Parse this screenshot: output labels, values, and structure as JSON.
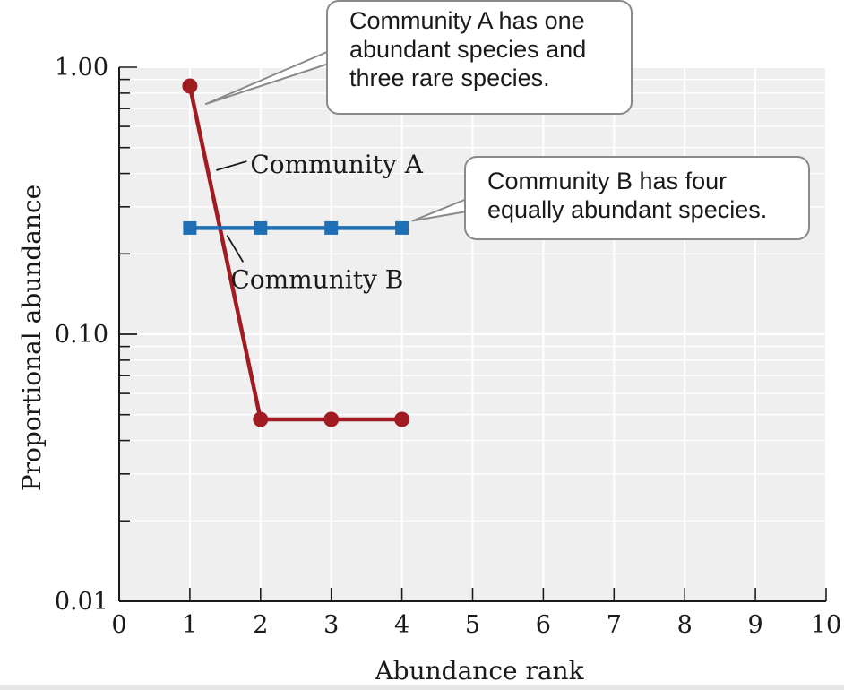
{
  "chart_data": {
    "type": "line",
    "xlabel": "Abundance rank",
    "ylabel": "Proportional abundance",
    "x_ticks": [
      "0",
      "1",
      "2",
      "3",
      "4",
      "5",
      "6",
      "7",
      "8",
      "9",
      "10"
    ],
    "xlim": [
      0,
      10
    ],
    "y_scale": "log",
    "y_ticks": [
      "0.01",
      "0.10",
      "1.00"
    ],
    "ylim": [
      0.01,
      1.0
    ],
    "grid": true,
    "series": [
      {
        "name": "Community A",
        "color": "#a01c22",
        "marker": "circle",
        "x": [
          1,
          2,
          3,
          4
        ],
        "values": [
          0.85,
          0.048,
          0.048,
          0.048
        ]
      },
      {
        "name": "Community B",
        "color": "#1f6fb4",
        "marker": "square",
        "x": [
          1,
          2,
          3,
          4
        ],
        "values": [
          0.25,
          0.25,
          0.25,
          0.25
        ]
      }
    ],
    "annotations": [
      {
        "lines": [
          "Community A has one",
          "abundant species and",
          "three rare species."
        ]
      },
      {
        "lines": [
          "Community B has four",
          "equally abundant species."
        ]
      }
    ]
  }
}
